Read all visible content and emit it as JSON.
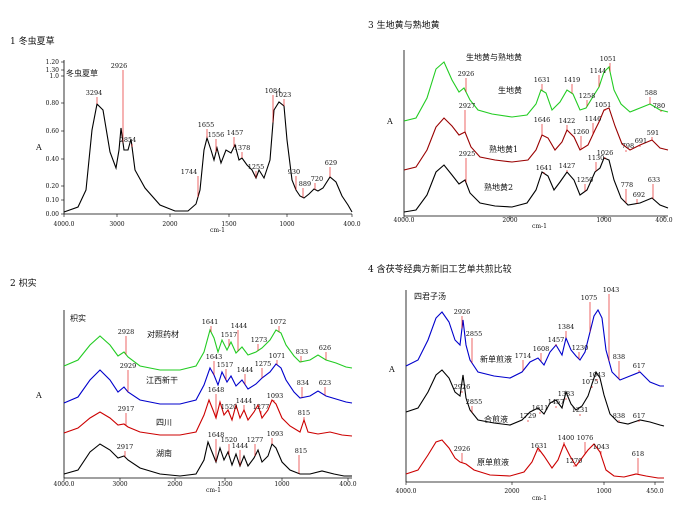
{
  "chart_data": [
    {
      "type": "line",
      "title": "1 冬虫夏草",
      "inner_title": "冬虫夏草",
      "xlabel": "cm-1",
      "ylabel": "A",
      "x_ticks": [
        "4000.0",
        "3000",
        "2000",
        "1500",
        "1000",
        "400.0"
      ],
      "y_ticks": [
        "0.00",
        "0.10",
        "0.20",
        "0.40",
        "0.60",
        "0.80",
        "1.0",
        "1.20",
        "1.30"
      ],
      "series": [
        {
          "name": "",
          "color": "#000000",
          "labels": [],
          "peaks": [
            "3294",
            "2926",
            "2854",
            "1744",
            "1655",
            "1556",
            "1457",
            "1378",
            "1255",
            "1084",
            "1023",
            "930",
            "889",
            "720",
            "629"
          ]
        }
      ]
    },
    {
      "type": "line",
      "title": "3 生地黄与熟地黄",
      "inner_title": "生地黄与熟地黄",
      "xlabel": "cm-1",
      "ylabel": "A",
      "x_ticks": [
        "4000.0",
        "2000",
        "1000",
        "400.0"
      ],
      "y_ticks": [],
      "series": [
        {
          "name": "生地黄",
          "color": "#22cc22",
          "labels": [
            "生地黄"
          ],
          "peaks": [
            "2926",
            "1631",
            "1419",
            "1258",
            "1144",
            "1051",
            "780",
            "588"
          ]
        },
        {
          "name": "熟地黄1",
          "color": "#990000",
          "labels": [
            "熟地黄1"
          ],
          "peaks": [
            "2927",
            "1646",
            "1422",
            "1260",
            "1146",
            "1051",
            "798",
            "691",
            "591"
          ]
        },
        {
          "name": "熟地黄2",
          "color": "#000000",
          "labels": [
            "熟地黄2"
          ],
          "peaks": [
            "2925",
            "1641",
            "1427",
            "1250",
            "1130",
            "1026",
            "778",
            "692",
            "633"
          ]
        }
      ]
    },
    {
      "type": "line",
      "title": "2 枳实",
      "inner_title": "枳实",
      "xlabel": "cm-1",
      "ylabel": "A",
      "x_ticks": [
        "4000.0",
        "3000",
        "2000",
        "1500",
        "1000",
        "400.0"
      ],
      "y_ticks": [],
      "series": [
        {
          "name": "对照药材",
          "color": "#22cc22",
          "labels": [
            "对照药材"
          ],
          "peaks": [
            "2928",
            "1641",
            "1517",
            "1444",
            "1273",
            "1072",
            "833",
            "626"
          ]
        },
        {
          "name": "江西新干",
          "color": "#0000cc",
          "labels": [
            "江西新干"
          ],
          "peaks": [
            "2929",
            "1643",
            "1517",
            "1444",
            "1275",
            "1071",
            "834",
            "623"
          ]
        },
        {
          "name": "四川",
          "color": "#cc0000",
          "labels": [
            "四川"
          ],
          "peaks": [
            "2917",
            "1648",
            "1520",
            "1444",
            "1277",
            "1093",
            "815"
          ]
        },
        {
          "name": "湖南",
          "color": "#000000",
          "labels": [
            "湖南"
          ],
          "peaks": [
            "2917",
            "1648",
            "1520",
            "1444",
            "1277",
            "1093",
            "815"
          ]
        }
      ]
    },
    {
      "type": "line",
      "title": "4 含茯苓经典方新旧工艺单共煎比较",
      "inner_title": "四君子汤",
      "xlabel": "cm-1",
      "ylabel": "A",
      "x_ticks": [
        "4000.0",
        "2000",
        "1000",
        "450.0"
      ],
      "y_ticks": [],
      "series": [
        {
          "name": "新单煎液",
          "color": "#0000cc",
          "labels": [
            "新单煎液"
          ],
          "peaks": [
            "2926",
            "2855",
            "1714",
            "1608",
            "1457",
            "1384",
            "1230",
            "1075",
            "1043",
            "838",
            "617"
          ]
        },
        {
          "name": "合煎液",
          "color": "#000000",
          "labels": [
            "合煎液"
          ],
          "peaks": [
            "2926",
            "2855",
            "1729",
            "1611",
            "1457",
            "1383",
            "1231",
            "1075",
            "1043",
            "838",
            "617"
          ]
        },
        {
          "name": "原单煎液",
          "color": "#cc0000",
          "labels": [
            "原单煎液"
          ],
          "peaks": [
            "2926",
            "1631",
            "1400",
            "1270",
            "1076",
            "1043",
            "618"
          ]
        }
      ]
    }
  ]
}
